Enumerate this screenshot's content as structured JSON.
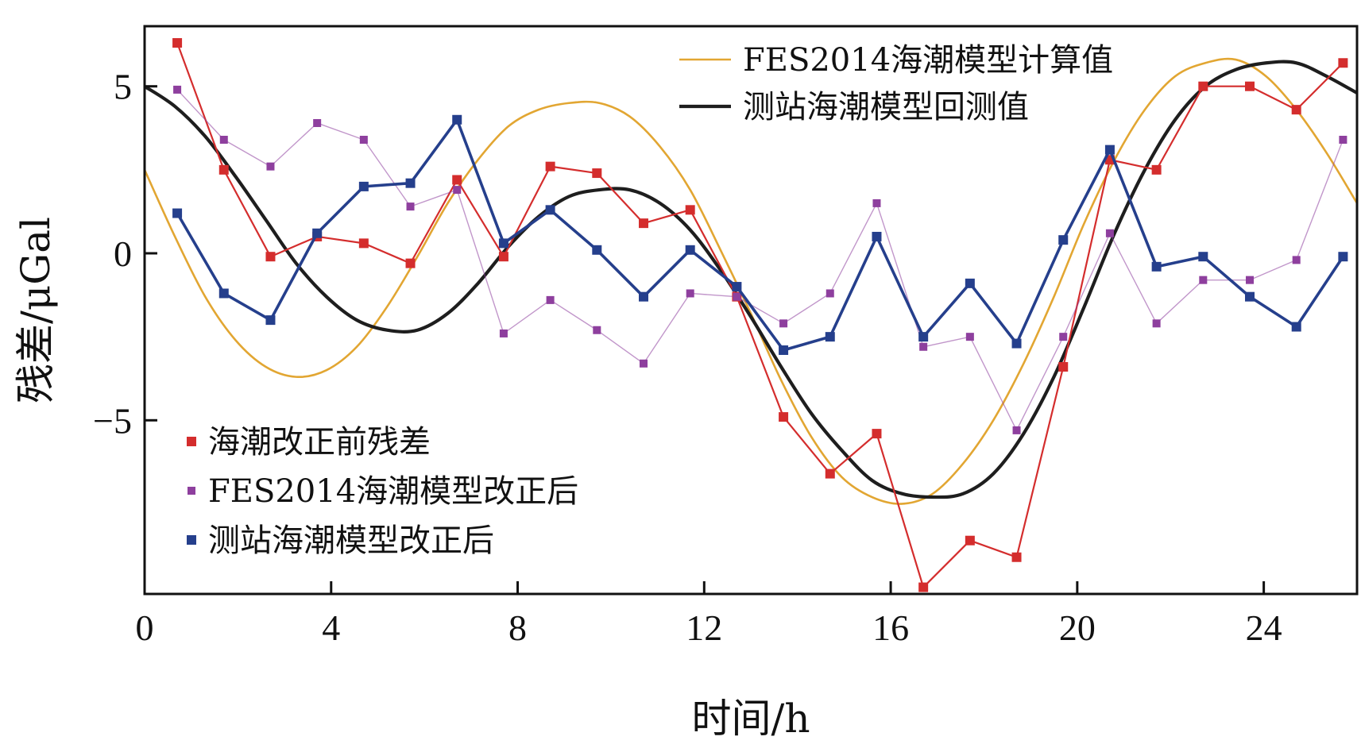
{
  "chart_data": {
    "type": "line",
    "title": "",
    "xlabel": "时间/h",
    "ylabel": "残差/μGal",
    "xlim": [
      0,
      26
    ],
    "ylim": [
      -10.2,
      6.8
    ],
    "xticks": [
      0,
      4,
      8,
      12,
      16,
      20,
      24
    ],
    "yticks": [
      5,
      0,
      -5
    ],
    "ytick_labels": [
      "5",
      "0",
      "−5"
    ],
    "legend_top": [
      "FES2014海潮模型计算值",
      "测站海潮模型回测值"
    ],
    "legend_bottom": [
      "海潮改正前残差",
      "FES2014海潮模型改正后",
      "测站海潮模型改正后"
    ],
    "curves": [
      {
        "name": "FES2014海潮模型计算值",
        "color": "#e2a632",
        "x": [
          0,
          0.65,
          1.3,
          1.95,
          2.6,
          3.25,
          3.9,
          4.55,
          5.2,
          5.85,
          6.5,
          7.15,
          7.8,
          8.45,
          9.1,
          9.75,
          10.4,
          11.05,
          11.7,
          12.35,
          13.0,
          13.65,
          14.3,
          14.95,
          15.6,
          16.25,
          16.9,
          17.55,
          18.2,
          18.85,
          19.5,
          20.15,
          20.8,
          21.45,
          22.1,
          22.75,
          23.4,
          24.05,
          24.7,
          25.35,
          26.0
        ],
        "y": [
          2.5,
          0.5,
          -1.3,
          -2.6,
          -3.4,
          -3.7,
          -3.5,
          -2.8,
          -1.6,
          -0.1,
          1.5,
          2.8,
          3.8,
          4.3,
          4.5,
          4.5,
          4.1,
          3.2,
          1.9,
          0.1,
          -1.8,
          -3.8,
          -5.5,
          -6.7,
          -7.3,
          -7.5,
          -7.2,
          -6.3,
          -5.0,
          -3.3,
          -1.3,
          0.9,
          2.8,
          4.3,
          5.3,
          5.7,
          5.8,
          5.3,
          4.3,
          3.0,
          1.5
        ]
      },
      {
        "name": "测站海潮模型回测值",
        "color": "#1e1e1e",
        "x": [
          0,
          0.65,
          1.3,
          1.95,
          2.6,
          3.25,
          3.9,
          4.55,
          5.2,
          5.85,
          6.5,
          7.15,
          7.8,
          8.45,
          9.1,
          9.75,
          10.4,
          11.05,
          11.7,
          12.35,
          13.0,
          13.65,
          14.3,
          14.95,
          15.6,
          16.25,
          16.9,
          17.55,
          18.2,
          18.85,
          19.5,
          20.15,
          20.8,
          21.45,
          22.1,
          22.75,
          23.4,
          24.05,
          24.7,
          25.35,
          26.0
        ],
        "y": [
          5.0,
          4.4,
          3.5,
          2.3,
          1.0,
          -0.3,
          -1.3,
          -2.0,
          -2.3,
          -2.3,
          -1.8,
          -0.9,
          0.2,
          1.1,
          1.7,
          1.9,
          1.9,
          1.5,
          0.7,
          -0.5,
          -1.9,
          -3.4,
          -4.8,
          -5.9,
          -6.8,
          -7.2,
          -7.3,
          -7.2,
          -6.6,
          -5.4,
          -3.7,
          -1.6,
          0.6,
          2.5,
          4.0,
          5.0,
          5.5,
          5.7,
          5.7,
          5.3,
          4.8
        ]
      }
    ],
    "series": [
      {
        "name": "海潮改正前残差",
        "color": "#d42d2d",
        "x": [
          0.7,
          1.7,
          2.7,
          3.7,
          4.7,
          5.7,
          6.7,
          7.7,
          8.7,
          9.7,
          10.7,
          11.7,
          12.7,
          13.7,
          14.7,
          15.7,
          16.7,
          17.7,
          18.7,
          19.7,
          20.7,
          21.7,
          22.7,
          23.7,
          24.7,
          25.7
        ],
        "y": [
          6.3,
          2.5,
          -0.1,
          0.5,
          0.3,
          -0.3,
          2.2,
          -0.1,
          2.6,
          2.4,
          0.9,
          1.3,
          -1.3,
          -4.9,
          -6.6,
          -5.4,
          -10.0,
          -8.6,
          -9.1,
          -3.4,
          2.8,
          2.5,
          5.0,
          5.0,
          4.3,
          5.7
        ]
      },
      {
        "name": "FES2014海潮模型改正后",
        "color": "#8e3f9e",
        "x": [
          0.7,
          1.7,
          2.7,
          3.7,
          4.7,
          5.7,
          6.7,
          7.7,
          8.7,
          9.7,
          10.7,
          11.7,
          12.7,
          13.7,
          14.7,
          15.7,
          16.7,
          17.7,
          18.7,
          19.7,
          20.7,
          21.7,
          22.7,
          23.7,
          24.7,
          25.7
        ],
        "y": [
          4.9,
          3.4,
          2.6,
          3.9,
          3.4,
          1.4,
          1.9,
          -2.4,
          -1.4,
          -2.3,
          -3.3,
          -1.2,
          -1.3,
          -2.1,
          -1.2,
          1.5,
          -2.8,
          -2.5,
          -5.3,
          -2.5,
          0.6,
          -2.1,
          -0.8,
          -0.8,
          -0.2,
          3.4
        ]
      },
      {
        "name": "测站海潮模型改正后",
        "color": "#253f8c",
        "x": [
          0.7,
          1.7,
          2.7,
          3.7,
          4.7,
          5.7,
          6.7,
          7.7,
          8.7,
          9.7,
          10.7,
          11.7,
          12.7,
          13.7,
          14.7,
          15.7,
          16.7,
          17.7,
          18.7,
          19.7,
          20.7,
          21.7,
          22.7,
          23.7,
          24.7,
          25.7
        ],
        "y": [
          1.2,
          -1.2,
          -2.0,
          0.6,
          2.0,
          2.1,
          4.0,
          0.3,
          1.3,
          0.1,
          -1.3,
          0.1,
          -1.0,
          -2.9,
          -2.5,
          0.5,
          -2.5,
          -0.9,
          -2.7,
          0.4,
          3.1,
          -0.4,
          -0.1,
          -1.3,
          -2.2,
          -0.1
        ]
      }
    ]
  }
}
